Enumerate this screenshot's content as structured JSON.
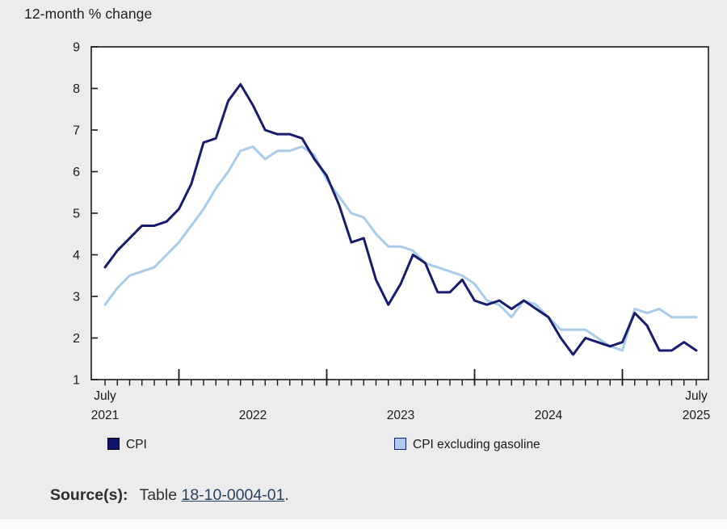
{
  "page": {
    "background": "#ececec",
    "plot_background": "#ffffff",
    "axis_color": "#1a1a1a"
  },
  "chart_data": {
    "type": "line",
    "title": "12-month % change",
    "xlabel": "",
    "ylabel": "",
    "ylim": [
      1,
      9
    ],
    "y_ticks": [
      1,
      2,
      3,
      4,
      5,
      6,
      7,
      8,
      9
    ],
    "grid": false,
    "legend_position": "bottom",
    "categories": [
      "2021-07",
      "2021-08",
      "2021-09",
      "2021-10",
      "2021-11",
      "2021-12",
      "2022-01",
      "2022-02",
      "2022-03",
      "2022-04",
      "2022-05",
      "2022-06",
      "2022-07",
      "2022-08",
      "2022-09",
      "2022-10",
      "2022-11",
      "2022-12",
      "2023-01",
      "2023-02",
      "2023-03",
      "2023-04",
      "2023-05",
      "2023-06",
      "2023-07",
      "2023-08",
      "2023-09",
      "2023-10",
      "2023-11",
      "2023-12",
      "2024-01",
      "2024-02",
      "2024-03",
      "2024-04",
      "2024-05",
      "2024-06",
      "2024-07",
      "2024-08",
      "2024-09",
      "2024-10",
      "2024-11",
      "2024-12",
      "2025-01",
      "2025-02",
      "2025-03",
      "2025-04",
      "2025-05",
      "2025-06",
      "2025-07"
    ],
    "series": [
      {
        "name": "CPI",
        "color": "#171c6e",
        "values": [
          3.7,
          4.1,
          4.4,
          4.7,
          4.7,
          4.8,
          5.1,
          5.7,
          6.7,
          6.8,
          7.7,
          8.1,
          7.6,
          7.0,
          6.9,
          6.9,
          6.8,
          6.3,
          5.9,
          5.2,
          4.3,
          4.4,
          3.4,
          2.8,
          3.3,
          4.0,
          3.8,
          3.1,
          3.1,
          3.4,
          2.9,
          2.8,
          2.9,
          2.7,
          2.9,
          2.7,
          2.5,
          2.0,
          1.6,
          2.0,
          1.9,
          1.8,
          1.9,
          2.6,
          2.3,
          1.7,
          1.7,
          1.9,
          1.7
        ]
      },
      {
        "name": "CPI excluding gasoline",
        "color": "#a8cce9",
        "values": [
          2.8,
          3.2,
          3.5,
          3.6,
          3.7,
          4.0,
          4.3,
          4.7,
          5.1,
          5.6,
          6.0,
          6.5,
          6.6,
          6.3,
          6.5,
          6.5,
          6.6,
          6.4,
          5.8,
          5.4,
          5.0,
          4.9,
          4.5,
          4.2,
          4.2,
          4.1,
          3.8,
          3.7,
          3.6,
          3.5,
          3.3,
          2.9,
          2.8,
          2.5,
          2.9,
          2.8,
          2.5,
          2.2,
          2.2,
          2.2,
          2.0,
          1.8,
          1.7,
          2.7,
          2.6,
          2.7,
          2.5,
          2.5,
          2.5
        ]
      }
    ],
    "x_axis_labels": [
      {
        "index": 0,
        "lines": [
          "July",
          "2021"
        ]
      },
      {
        "index": 12,
        "lines": [
          "2022"
        ]
      },
      {
        "index": 24,
        "lines": [
          "2023"
        ]
      },
      {
        "index": 36,
        "lines": [
          "2024"
        ]
      },
      {
        "index": 48,
        "lines": [
          "July",
          "2025"
        ]
      }
    ]
  },
  "legend": {
    "items": [
      {
        "label": "CPI",
        "fill": "#10146a",
        "border": "#000000"
      },
      {
        "label": "CPI excluding gasoline",
        "fill": "#aacdf0",
        "border": "#171c6e"
      }
    ]
  },
  "footer": {
    "source_label": "Source(s):",
    "text_before_link": "Table ",
    "link_text": "18-10-0004-01",
    "text_after_link": "."
  }
}
